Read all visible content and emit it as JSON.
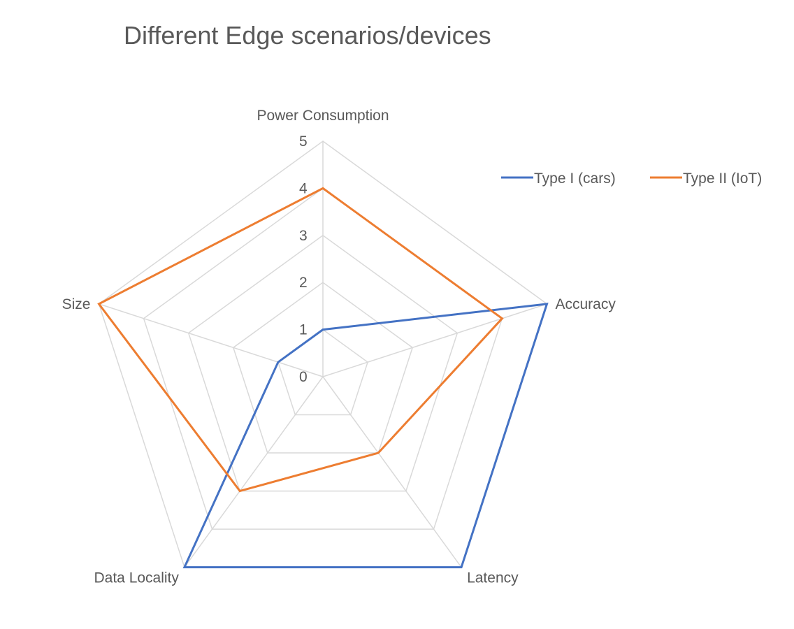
{
  "chart_data": {
    "type": "radar",
    "title": "Different Edge scenarios/devices",
    "categories": [
      "Power Consumption",
      "Accuracy",
      "Latency",
      "Data Locality",
      "Size"
    ],
    "rlim": [
      0,
      5
    ],
    "ticks": [
      "0",
      "1",
      "2",
      "3",
      "4",
      "5"
    ],
    "grid": true,
    "legend": "top-right",
    "series": [
      {
        "name": "Type I (cars)",
        "color": "#4472C4",
        "values": [
          1,
          5,
          5,
          5,
          1
        ]
      },
      {
        "name": "Type II (IoT)",
        "color": "#ED7D31",
        "values": [
          4,
          4,
          2,
          3,
          5
        ]
      }
    ]
  }
}
